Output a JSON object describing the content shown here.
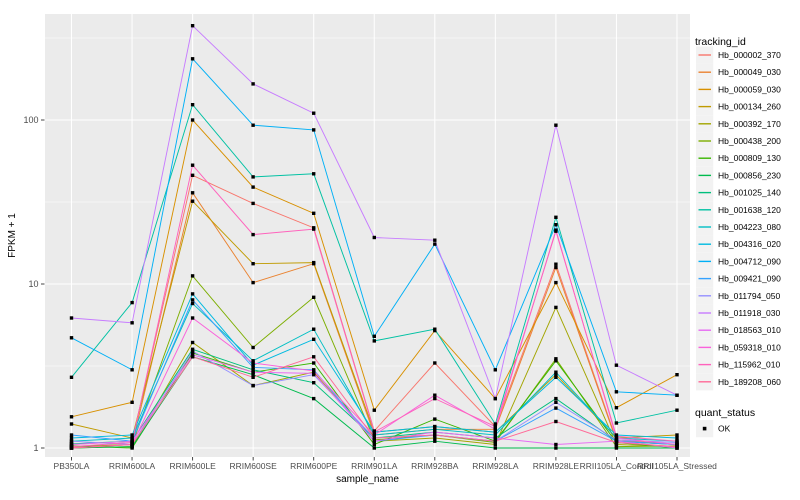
{
  "figure": {
    "background": "#FFFFFF",
    "panel_bg": "#EBEBEB",
    "grid_color": "#FFFFFF",
    "tick_color": "#333333",
    "axis_text_color": "#4D4D4D",
    "title_color": "#000000",
    "legend_key_bg": "#F2F2F2"
  },
  "legend": {
    "tracking_title": "tracking_id",
    "quant_title": "quant_status",
    "quant_items": [
      {
        "label": "OK",
        "color": "#000000",
        "shape": "square"
      }
    ]
  },
  "chart_data": {
    "type": "line",
    "title": "",
    "xlabel": "sample_name",
    "ylabel": "FPKM + 1",
    "y_scale": "log10",
    "ylim": [
      0.95,
      420
    ],
    "y_ticks": [
      1,
      10,
      100
    ],
    "y_tick_labels": [
      "1",
      "10",
      "100"
    ],
    "grid": true,
    "legend_position": "right",
    "point_marker": {
      "shape": "square",
      "color": "#000000",
      "meaning": "quant_status OK"
    },
    "categories": [
      "PB350LA",
      "RRIM600LA",
      "RRIM600LE",
      "RRIM600SE",
      "RRIM600PE",
      "RRIM901LA",
      "RRIM928BA",
      "RRIM928LA",
      "RRIM928LE",
      "RRII105LA_Control",
      "RRII105LA_Stressed"
    ],
    "series": [
      {
        "name": "Hb_000002_370",
        "color": "#F8766D",
        "values": [
          1.05,
          1.1,
          46,
          31,
          22,
          1.27,
          3.3,
          1.35,
          13.2,
          1.12,
          1.05
        ]
      },
      {
        "name": "Hb_000049_030",
        "color": "#EA8331",
        "values": [
          1.0,
          1.05,
          36,
          10.2,
          13.3,
          1.2,
          1.3,
          1.3,
          12.6,
          1.1,
          1.05
        ]
      },
      {
        "name": "Hb_000059_030",
        "color": "#D89000",
        "values": [
          1.55,
          1.9,
          100,
          39,
          27,
          1.7,
          5.2,
          2.0,
          10.2,
          1.76,
          2.8
        ]
      },
      {
        "name": "Hb_000134_260",
        "color": "#C09B00",
        "values": [
          1.4,
          1.15,
          32,
          13.3,
          13.5,
          1.25,
          1.35,
          1.25,
          2.8,
          1.15,
          1.2
        ]
      },
      {
        "name": "Hb_000392_170",
        "color": "#A3A500",
        "values": [
          1.0,
          1.02,
          4.4,
          2.4,
          2.9,
          1.1,
          1.15,
          1.05,
          7.2,
          1.05,
          1.02
        ]
      },
      {
        "name": "Hb_000438_200",
        "color": "#7CAE00",
        "values": [
          1.02,
          1.05,
          11.2,
          4.1,
          8.3,
          1.12,
          1.2,
          1.08,
          3.5,
          1.02,
          1.03
        ]
      },
      {
        "name": "Hb_000809_130",
        "color": "#39B600",
        "values": [
          1.03,
          1.0,
          3.8,
          2.9,
          3.3,
          1.05,
          1.5,
          1.1,
          3.4,
          1.08,
          1.0
        ]
      },
      {
        "name": "Hb_000856_230",
        "color": "#00BB4E",
        "values": [
          1.0,
          1.02,
          3.6,
          2.8,
          2.0,
          1.0,
          1.1,
          1.0,
          1.0,
          1.0,
          1.0
        ]
      },
      {
        "name": "Hb_001025_140",
        "color": "#00BF7D",
        "values": [
          1.06,
          1.1,
          4.0,
          3.0,
          2.5,
          1.15,
          1.25,
          1.15,
          2.0,
          1.1,
          1.05
        ]
      },
      {
        "name": "Hb_001638_120",
        "color": "#00C1A3",
        "values": [
          2.7,
          7.7,
          124,
          45,
          47,
          4.5,
          5.3,
          1.4,
          25.5,
          1.42,
          1.7
        ]
      },
      {
        "name": "Hb_004223_080",
        "color": "#00BFC4",
        "values": [
          1.1,
          1.15,
          7.6,
          3.4,
          5.3,
          1.2,
          1.3,
          1.2,
          2.9,
          1.15,
          1.1
        ]
      },
      {
        "name": "Hb_004316_020",
        "color": "#00BAE0",
        "values": [
          1.15,
          1.2,
          8.7,
          3.2,
          4.6,
          1.25,
          1.35,
          1.25,
          2.7,
          1.2,
          1.15
        ]
      },
      {
        "name": "Hb_004712_090",
        "color": "#00B0F6",
        "values": [
          4.7,
          3.0,
          236,
          93,
          87,
          4.8,
          17.5,
          3.0,
          23.0,
          2.2,
          2.1
        ]
      },
      {
        "name": "Hb_009421_090",
        "color": "#35A2FF",
        "values": [
          1.2,
          1.1,
          8.0,
          3.1,
          3.0,
          1.1,
          1.2,
          1.1,
          1.75,
          1.1,
          1.05
        ]
      },
      {
        "name": "Hb_011794_050",
        "color": "#9590FF",
        "values": [
          1.1,
          1.05,
          3.9,
          2.4,
          2.8,
          1.15,
          1.2,
          1.1,
          1.9,
          1.12,
          1.08
        ]
      },
      {
        "name": "Hb_011918_030",
        "color": "#C77CFF",
        "values": [
          6.2,
          5.8,
          376,
          166,
          110,
          19.2,
          18.5,
          2.0,
          93,
          3.2,
          2.1
        ]
      },
      {
        "name": "Hb_018563_010",
        "color": "#E76BF3",
        "values": [
          1.05,
          1.1,
          3.7,
          2.9,
          2.85,
          1.1,
          1.25,
          1.15,
          1.05,
          1.1,
          1.0
        ]
      },
      {
        "name": "Hb_059318_010",
        "color": "#FA62DB",
        "values": [
          1.0,
          1.05,
          6.2,
          3.3,
          2.95,
          1.2,
          2.1,
          1.3,
          21.3,
          1.15,
          1.05
        ]
      },
      {
        "name": "Hb_115962_010",
        "color": "#FF62BC",
        "values": [
          1.02,
          1.08,
          53,
          20,
          21.6,
          1.25,
          2.0,
          1.35,
          21.0,
          1.18,
          1.1
        ]
      },
      {
        "name": "Hb_189208_060",
        "color": "#FF6A98",
        "values": [
          1.0,
          1.05,
          3.6,
          2.7,
          3.6,
          1.15,
          1.2,
          1.1,
          1.45,
          1.08,
          1.02
        ]
      }
    ]
  }
}
